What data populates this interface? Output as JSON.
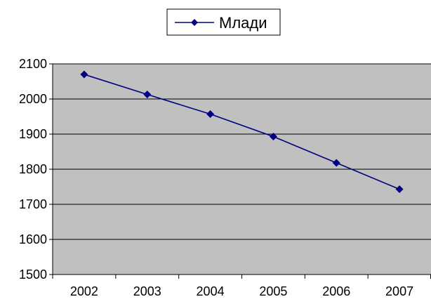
{
  "chart_data": {
    "type": "line",
    "x": [
      "2002",
      "2003",
      "2004",
      "2005",
      "2006",
      "2007"
    ],
    "series": [
      {
        "name": "Млади",
        "values": [
          2070,
          2013,
          1957,
          1893,
          1818,
          1743
        ]
      }
    ],
    "ylim": [
      1500,
      2100
    ],
    "yticks": [
      1500,
      1600,
      1700,
      1800,
      1900,
      2000,
      2100
    ],
    "grid": true,
    "legend_position": "top-center",
    "marker": "diamond",
    "colors": {
      "series": "#000080",
      "plot_background": "#c0c0c0",
      "grid": "#000000"
    }
  }
}
